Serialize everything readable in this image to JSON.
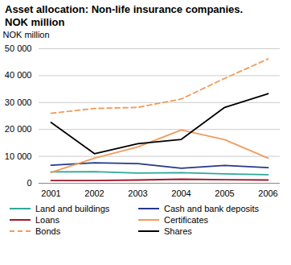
{
  "chart_data": {
    "type": "line",
    "title": "Asset allocation: Non-life insurance companies. NOK million",
    "y_label": "NOK million",
    "categories": [
      "2001",
      "2002",
      "2003",
      "2004",
      "2005",
      "2006"
    ],
    "series": [
      {
        "name": "Land and buildings",
        "color": "#2fa89a",
        "line_style": "solid",
        "values": [
          4200,
          4300,
          3800,
          3900,
          3500,
          3200
        ]
      },
      {
        "name": "Cash and bank deposits",
        "color": "#27388c",
        "line_style": "solid",
        "values": [
          6700,
          7600,
          7300,
          5600,
          6600,
          5800
        ]
      },
      {
        "name": "Loans",
        "color": "#a0182a",
        "line_style": "solid",
        "values": [
          1000,
          1000,
          1200,
          1500,
          1300,
          1200
        ]
      },
      {
        "name": "Certificates",
        "color": "#f29b5c",
        "line_style": "solid",
        "values": [
          4000,
          9300,
          13500,
          19800,
          16200,
          9300
        ]
      },
      {
        "name": "Bonds",
        "color": "#f29b5c",
        "line_style": "dashed",
        "values": [
          26000,
          27800,
          28200,
          31300,
          39000,
          46200
        ]
      },
      {
        "name": "Shares",
        "color": "#000000",
        "line_style": "solid",
        "values": [
          22600,
          11000,
          14700,
          16300,
          28200,
          33300
        ]
      }
    ],
    "ylim": [
      0,
      50000
    ],
    "yticks": [
      0,
      {
        "value": 10000,
        "label": "10 000"
      },
      {
        "value": 20000,
        "label": "20 000"
      },
      {
        "value": 30000,
        "label": "30 000"
      },
      {
        "value": 40000,
        "label": "40 000"
      },
      {
        "value": 50000,
        "label": "50 000"
      }
    ],
    "grid": true,
    "legend": "bottom"
  }
}
